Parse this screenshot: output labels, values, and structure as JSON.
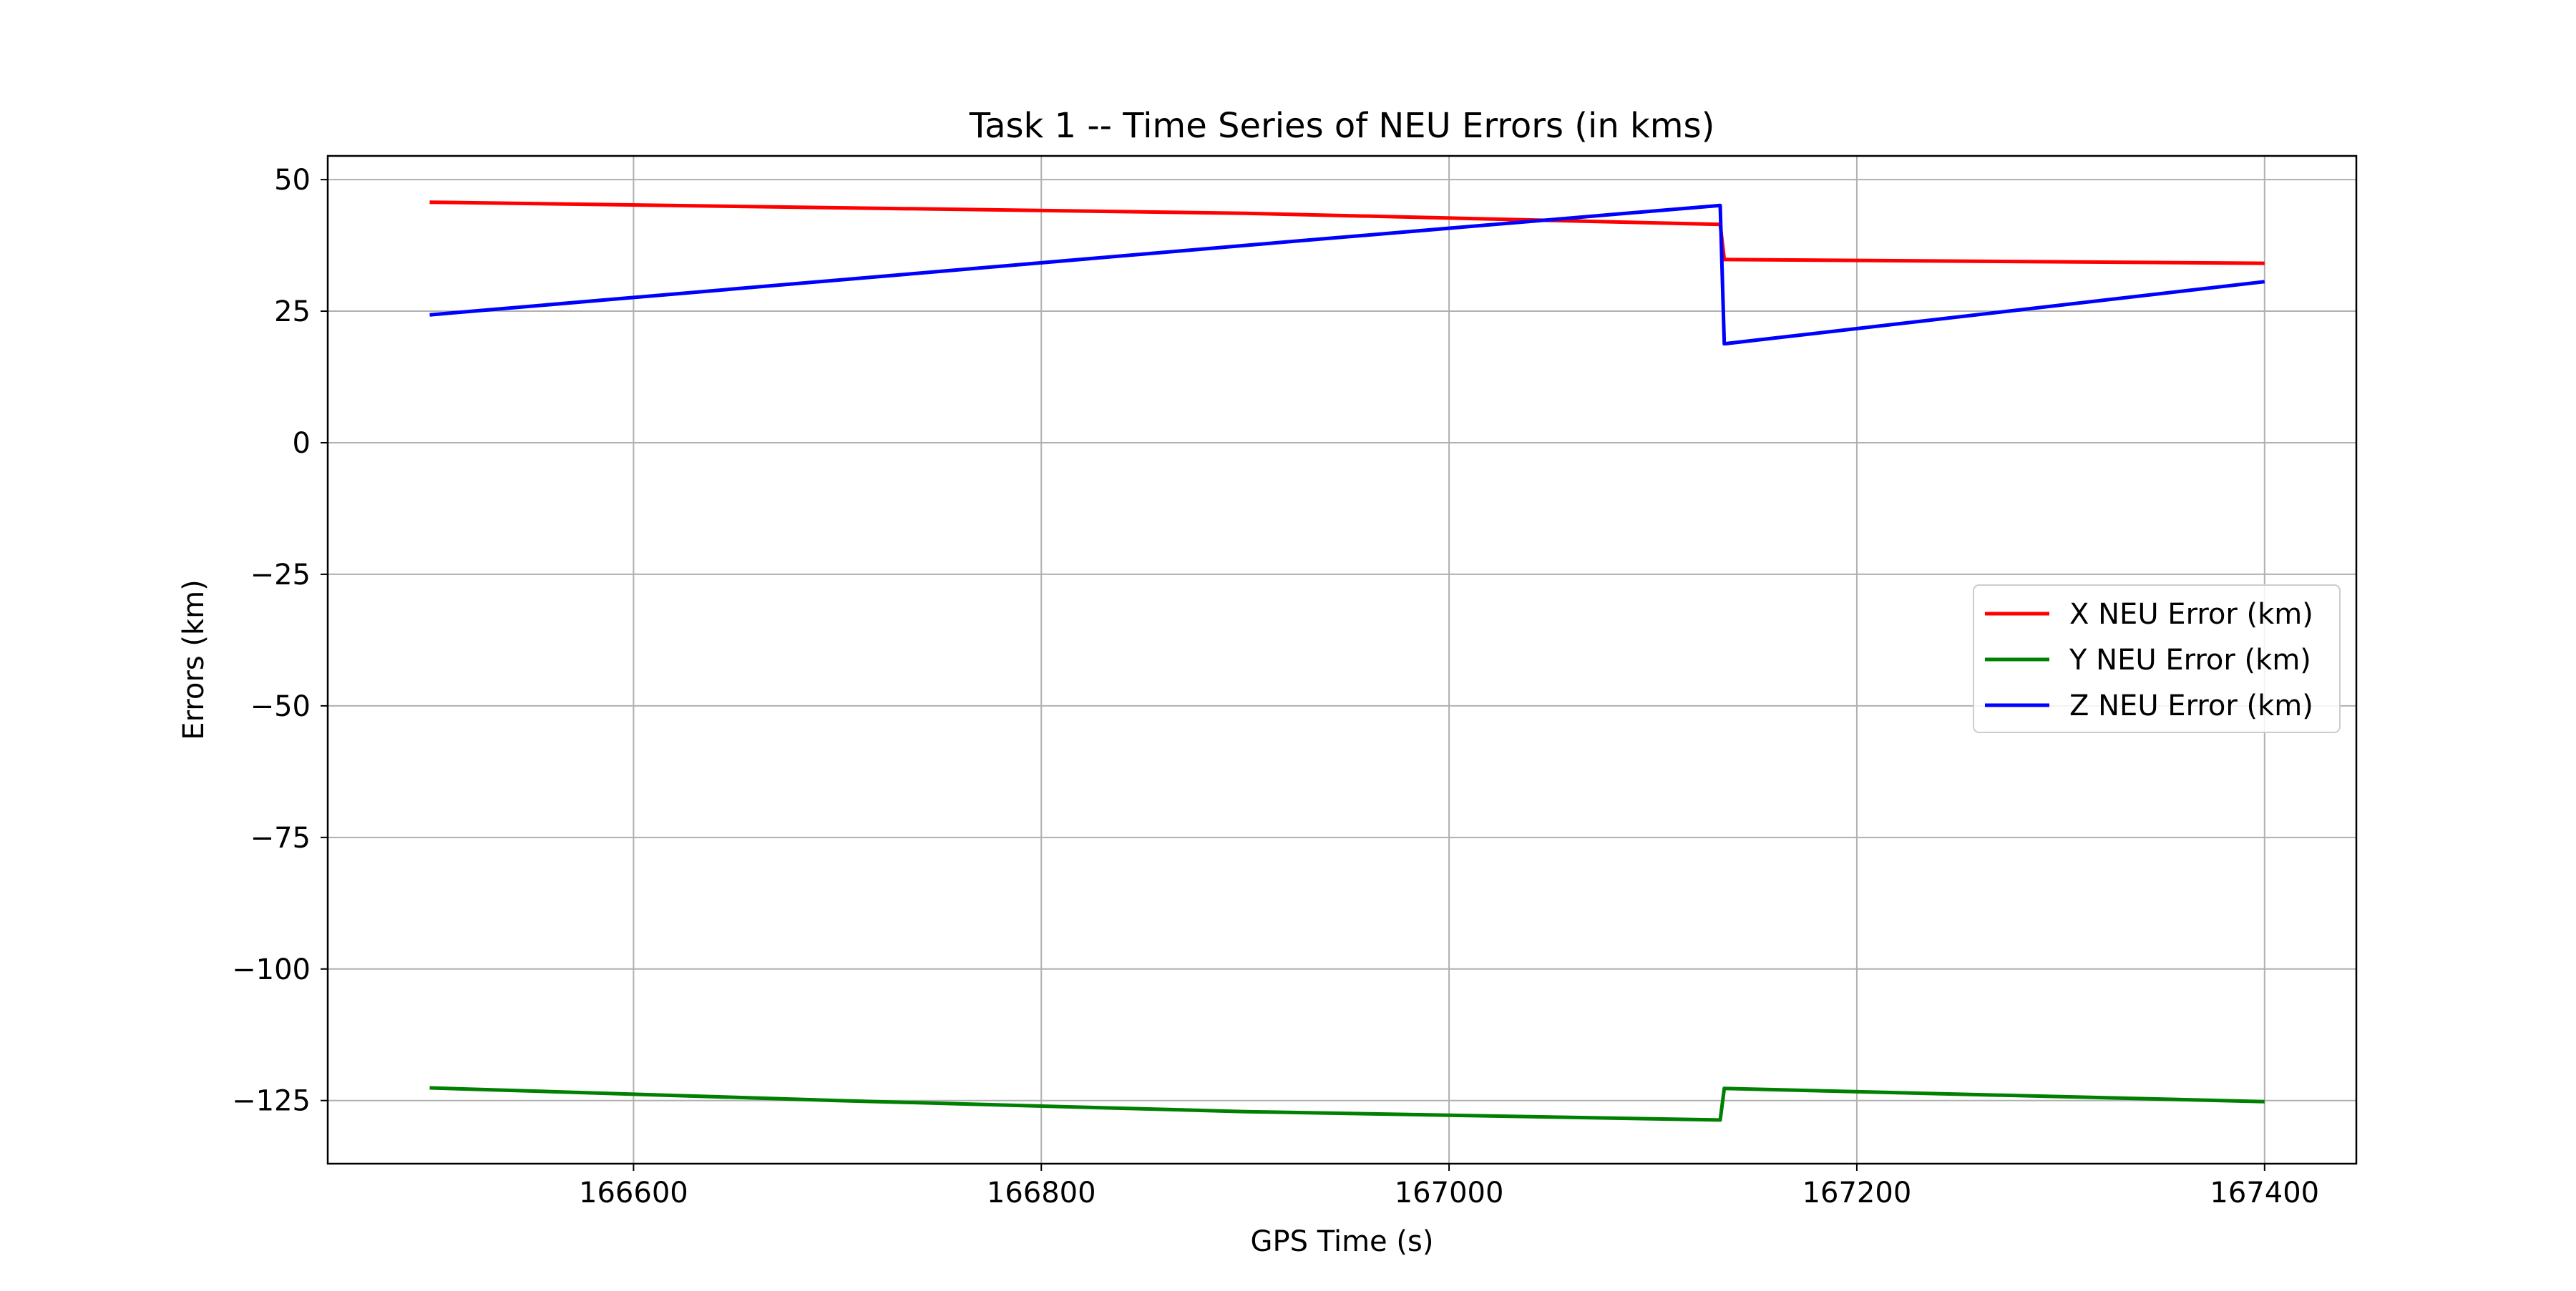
{
  "chart_data": {
    "type": "line",
    "title": "Task 1 -- Time Series of NEU Errors (in kms)",
    "xlabel": "GPS Time (s)",
    "ylabel": "Errors (km)",
    "xlim": [
      166450,
      167445
    ],
    "ylim": [
      -137,
      54.5
    ],
    "x_ticks": [
      166600,
      166800,
      167000,
      167200,
      167400
    ],
    "x_tick_labels": [
      "166600",
      "166800",
      "167000",
      "167200",
      "167400"
    ],
    "y_ticks": [
      50,
      25,
      0,
      -25,
      -50,
      -75,
      -100,
      -125
    ],
    "y_tick_labels": [
      "50",
      "25",
      "0",
      "−25",
      "−50",
      "−75",
      "−100",
      "−125"
    ],
    "grid": true,
    "legend_position": "center-right",
    "series": [
      {
        "name": "X NEU Error (km)",
        "color": "#ff0000",
        "points": [
          [
            166500,
            45.7
          ],
          [
            166900,
            43.6
          ],
          [
            167133,
            41.5
          ],
          [
            167135,
            34.8
          ],
          [
            167400,
            34.1
          ]
        ]
      },
      {
        "name": "Y NEU Error (km)",
        "color": "#008000",
        "points": [
          [
            166500,
            -122.6
          ],
          [
            166700,
            -125.0
          ],
          [
            166900,
            -127.1
          ],
          [
            167133,
            -128.7
          ],
          [
            167135,
            -122.7
          ],
          [
            167400,
            -125.2
          ]
        ]
      },
      {
        "name": "Z NEU Error (km)",
        "color": "#0000ff",
        "points": [
          [
            166500,
            24.3
          ],
          [
            166900,
            37.5
          ],
          [
            167133,
            45.1
          ],
          [
            167135,
            18.8
          ],
          [
            167400,
            30.6
          ]
        ]
      }
    ]
  }
}
